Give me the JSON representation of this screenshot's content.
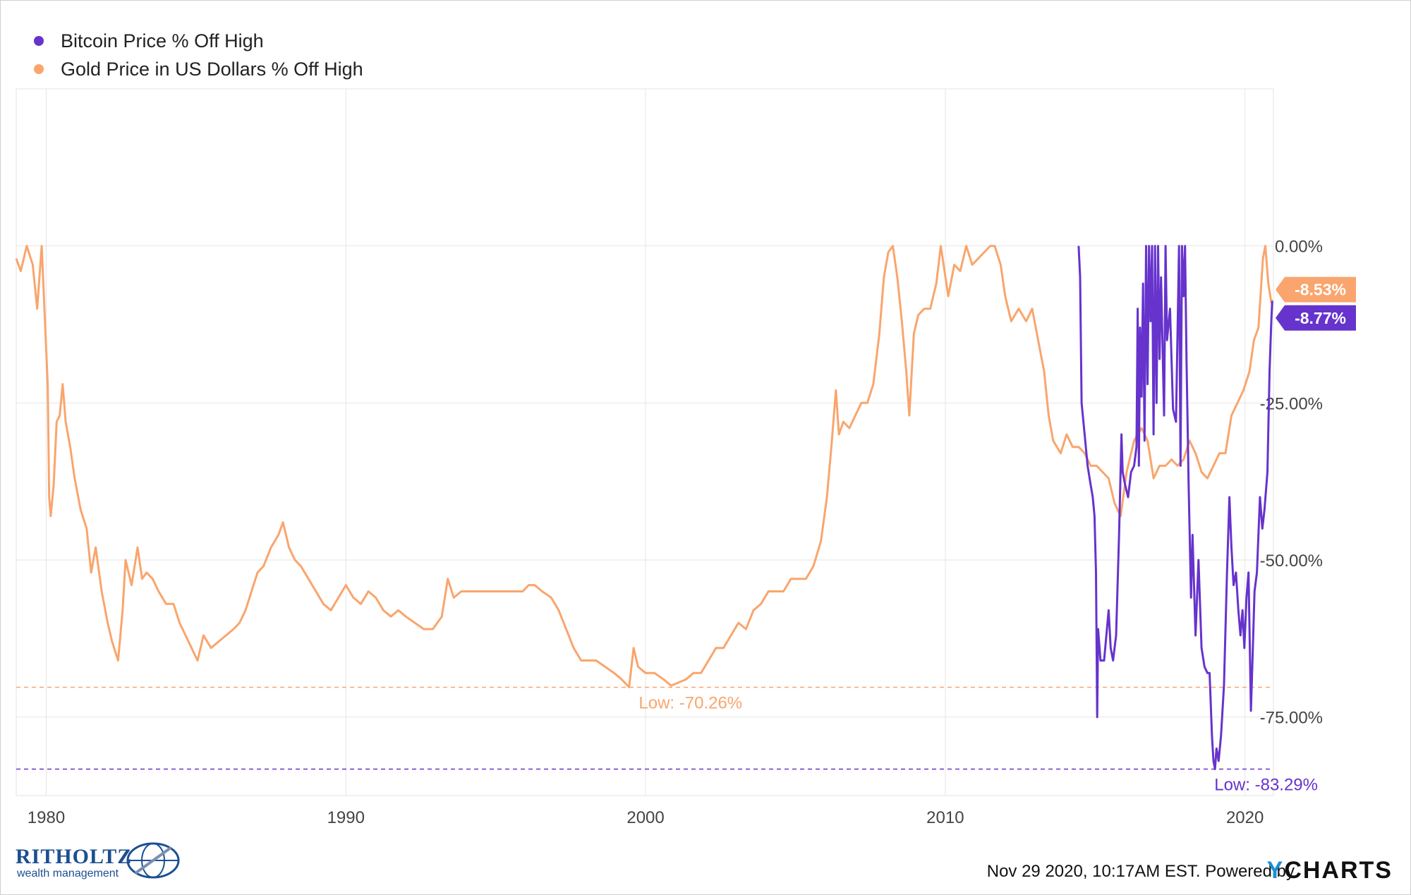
{
  "chart_data": {
    "type": "line",
    "title": "",
    "xlabel": "",
    "ylabel": "",
    "x_ticks": [
      "1980",
      "1990",
      "2000",
      "2010",
      "2020"
    ],
    "y_ticks": [
      "0.00%",
      "-25.00%",
      "-50.00%",
      "-75.00%"
    ],
    "xlim": [
      1979.0,
      2020.95
    ],
    "ylim": [
      -87.5,
      25
    ],
    "grid": true,
    "legend_position": "top-left",
    "series": [
      {
        "name": "Bitcoin Price % Off High",
        "color": "#6633cc",
        "last_value_label": "-8.77%",
        "low_label": "Low: -83.29%",
        "low_value": -83.29,
        "points": [
          [
            2014.45,
            0
          ],
          [
            2014.5,
            -5
          ],
          [
            2014.55,
            -25
          ],
          [
            2014.65,
            -30
          ],
          [
            2014.75,
            -35
          ],
          [
            2014.85,
            -38
          ],
          [
            2014.92,
            -40
          ],
          [
            2014.98,
            -43
          ],
          [
            2015.03,
            -52
          ],
          [
            2015.07,
            -75
          ],
          [
            2015.1,
            -61
          ],
          [
            2015.18,
            -66
          ],
          [
            2015.3,
            -66
          ],
          [
            2015.45,
            -58
          ],
          [
            2015.52,
            -64
          ],
          [
            2015.6,
            -66
          ],
          [
            2015.7,
            -62
          ],
          [
            2015.8,
            -46
          ],
          [
            2015.88,
            -30
          ],
          [
            2015.92,
            -36
          ],
          [
            2016.0,
            -38
          ],
          [
            2016.1,
            -40
          ],
          [
            2016.2,
            -36
          ],
          [
            2016.3,
            -35
          ],
          [
            2016.38,
            -32
          ],
          [
            2016.42,
            -10
          ],
          [
            2016.46,
            -35
          ],
          [
            2016.5,
            -13
          ],
          [
            2016.55,
            -24
          ],
          [
            2016.6,
            -6
          ],
          [
            2016.65,
            -31
          ],
          [
            2016.7,
            0
          ],
          [
            2016.75,
            -22
          ],
          [
            2016.8,
            0
          ],
          [
            2016.85,
            -12
          ],
          [
            2016.9,
            0
          ],
          [
            2016.95,
            -30
          ],
          [
            2017.0,
            0
          ],
          [
            2017.05,
            -25
          ],
          [
            2017.1,
            0
          ],
          [
            2017.15,
            -18
          ],
          [
            2017.2,
            -5
          ],
          [
            2017.3,
            -27
          ],
          [
            2017.35,
            0
          ],
          [
            2017.4,
            -15
          ],
          [
            2017.5,
            -10
          ],
          [
            2017.6,
            -26
          ],
          [
            2017.7,
            -28
          ],
          [
            2017.8,
            0
          ],
          [
            2017.85,
            -35
          ],
          [
            2017.9,
            0
          ],
          [
            2017.95,
            -8
          ],
          [
            2018.0,
            0
          ],
          [
            2018.05,
            -18
          ],
          [
            2018.12,
            -38
          ],
          [
            2018.2,
            -56
          ],
          [
            2018.25,
            -46
          ],
          [
            2018.35,
            -62
          ],
          [
            2018.45,
            -50
          ],
          [
            2018.55,
            -64
          ],
          [
            2018.65,
            -67
          ],
          [
            2018.75,
            -68
          ],
          [
            2018.82,
            -68
          ],
          [
            2018.9,
            -78
          ],
          [
            2018.95,
            -82
          ],
          [
            2019.0,
            -83.29
          ],
          [
            2019.05,
            -80
          ],
          [
            2019.12,
            -82
          ],
          [
            2019.2,
            -78
          ],
          [
            2019.3,
            -70
          ],
          [
            2019.4,
            -52
          ],
          [
            2019.48,
            -40
          ],
          [
            2019.55,
            -48
          ],
          [
            2019.62,
            -54
          ],
          [
            2019.7,
            -52
          ],
          [
            2019.78,
            -58
          ],
          [
            2019.85,
            -62
          ],
          [
            2019.92,
            -58
          ],
          [
            2019.98,
            -64
          ],
          [
            2020.05,
            -56
          ],
          [
            2020.12,
            -52
          ],
          [
            2020.2,
            -74
          ],
          [
            2020.25,
            -66
          ],
          [
            2020.32,
            -55
          ],
          [
            2020.4,
            -52
          ],
          [
            2020.5,
            -40
          ],
          [
            2020.58,
            -45
          ],
          [
            2020.65,
            -42
          ],
          [
            2020.75,
            -36
          ],
          [
            2020.82,
            -20
          ],
          [
            2020.88,
            -12
          ],
          [
            2020.91,
            -8.77
          ]
        ]
      },
      {
        "name": "Gold Price in US Dollars % Off High",
        "color": "#f9a56d",
        "last_value_label": "-8.53%",
        "low_label": "Low: -70.26%",
        "low_value": -70.26,
        "points": [
          [
            1979.0,
            -2
          ],
          [
            1979.15,
            -4
          ],
          [
            1979.35,
            0
          ],
          [
            1979.55,
            -3
          ],
          [
            1979.7,
            -10
          ],
          [
            1979.85,
            0
          ],
          [
            1980.05,
            -22
          ],
          [
            1980.1,
            -40
          ],
          [
            1980.15,
            -43
          ],
          [
            1980.25,
            -38
          ],
          [
            1980.35,
            -28
          ],
          [
            1980.45,
            -27
          ],
          [
            1980.55,
            -22
          ],
          [
            1980.65,
            -28
          ],
          [
            1980.8,
            -32
          ],
          [
            1980.95,
            -37
          ],
          [
            1981.15,
            -42
          ],
          [
            1981.35,
            -45
          ],
          [
            1981.5,
            -52
          ],
          [
            1981.65,
            -48
          ],
          [
            1981.85,
            -55
          ],
          [
            1982.05,
            -60
          ],
          [
            1982.2,
            -63
          ],
          [
            1982.4,
            -66
          ],
          [
            1982.55,
            -58
          ],
          [
            1982.65,
            -50
          ],
          [
            1982.85,
            -54
          ],
          [
            1983.05,
            -48
          ],
          [
            1983.2,
            -53
          ],
          [
            1983.35,
            -52
          ],
          [
            1983.55,
            -53
          ],
          [
            1983.75,
            -55
          ],
          [
            1984.0,
            -57
          ],
          [
            1984.25,
            -57
          ],
          [
            1984.45,
            -60
          ],
          [
            1984.65,
            -62
          ],
          [
            1984.85,
            -64
          ],
          [
            1985.05,
            -66
          ],
          [
            1985.25,
            -62
          ],
          [
            1985.5,
            -64
          ],
          [
            1985.75,
            -63
          ],
          [
            1986.0,
            -62
          ],
          [
            1986.25,
            -61
          ],
          [
            1986.45,
            -60
          ],
          [
            1986.65,
            -58
          ],
          [
            1986.85,
            -55
          ],
          [
            1987.05,
            -52
          ],
          [
            1987.25,
            -51
          ],
          [
            1987.5,
            -48
          ],
          [
            1987.75,
            -46
          ],
          [
            1987.9,
            -44
          ],
          [
            1988.1,
            -48
          ],
          [
            1988.3,
            -50
          ],
          [
            1988.5,
            -51
          ],
          [
            1988.75,
            -53
          ],
          [
            1989.0,
            -55
          ],
          [
            1989.25,
            -57
          ],
          [
            1989.5,
            -58
          ],
          [
            1989.75,
            -56
          ],
          [
            1990.0,
            -54
          ],
          [
            1990.25,
            -56
          ],
          [
            1990.5,
            -57
          ],
          [
            1990.75,
            -55
          ],
          [
            1991.0,
            -56
          ],
          [
            1991.25,
            -58
          ],
          [
            1991.5,
            -59
          ],
          [
            1991.75,
            -58
          ],
          [
            1992.0,
            -59
          ],
          [
            1992.3,
            -60
          ],
          [
            1992.6,
            -61
          ],
          [
            1992.9,
            -61
          ],
          [
            1993.2,
            -59
          ],
          [
            1993.4,
            -53
          ],
          [
            1993.6,
            -56
          ],
          [
            1993.85,
            -55
          ],
          [
            1994.1,
            -55
          ],
          [
            1994.4,
            -55
          ],
          [
            1994.7,
            -55
          ],
          [
            1995.0,
            -55
          ],
          [
            1995.3,
            -55
          ],
          [
            1995.6,
            -55
          ],
          [
            1995.9,
            -55
          ],
          [
            1996.1,
            -54
          ],
          [
            1996.3,
            -54
          ],
          [
            1996.55,
            -55
          ],
          [
            1996.85,
            -56
          ],
          [
            1997.1,
            -58
          ],
          [
            1997.35,
            -61
          ],
          [
            1997.6,
            -64
          ],
          [
            1997.85,
            -66
          ],
          [
            1998.1,
            -66
          ],
          [
            1998.35,
            -66
          ],
          [
            1998.65,
            -67
          ],
          [
            1998.95,
            -68
          ],
          [
            1999.2,
            -69
          ],
          [
            1999.45,
            -70.26
          ],
          [
            1999.6,
            -64
          ],
          [
            1999.75,
            -67
          ],
          [
            2000.0,
            -68
          ],
          [
            2000.3,
            -68
          ],
          [
            2000.6,
            -69
          ],
          [
            2000.85,
            -70
          ],
          [
            2001.1,
            -69.5
          ],
          [
            2001.35,
            -69
          ],
          [
            2001.6,
            -68
          ],
          [
            2001.85,
            -68
          ],
          [
            2002.1,
            -66
          ],
          [
            2002.35,
            -64
          ],
          [
            2002.6,
            -64
          ],
          [
            2002.85,
            -62
          ],
          [
            2003.1,
            -60
          ],
          [
            2003.35,
            -61
          ],
          [
            2003.6,
            -58
          ],
          [
            2003.85,
            -57
          ],
          [
            2004.1,
            -55
          ],
          [
            2004.35,
            -55
          ],
          [
            2004.6,
            -55
          ],
          [
            2004.85,
            -53
          ],
          [
            2005.1,
            -53
          ],
          [
            2005.35,
            -53
          ],
          [
            2005.6,
            -51
          ],
          [
            2005.85,
            -47
          ],
          [
            2006.05,
            -40
          ],
          [
            2006.2,
            -32
          ],
          [
            2006.35,
            -23
          ],
          [
            2006.45,
            -30
          ],
          [
            2006.6,
            -28
          ],
          [
            2006.8,
            -29
          ],
          [
            2007.0,
            -27
          ],
          [
            2007.2,
            -25
          ],
          [
            2007.4,
            -25
          ],
          [
            2007.6,
            -22
          ],
          [
            2007.8,
            -14
          ],
          [
            2007.95,
            -5
          ],
          [
            2008.1,
            -1
          ],
          [
            2008.25,
            0
          ],
          [
            2008.4,
            -5
          ],
          [
            2008.55,
            -12
          ],
          [
            2008.7,
            -20
          ],
          [
            2008.8,
            -27
          ],
          [
            2008.95,
            -14
          ],
          [
            2009.1,
            -11
          ],
          [
            2009.3,
            -10
          ],
          [
            2009.5,
            -10
          ],
          [
            2009.7,
            -6
          ],
          [
            2009.85,
            0
          ],
          [
            2010.1,
            -8
          ],
          [
            2010.3,
            -3
          ],
          [
            2010.5,
            -4
          ],
          [
            2010.7,
            0
          ],
          [
            2010.9,
            -3
          ],
          [
            2011.1,
            -2
          ],
          [
            2011.3,
            -1
          ],
          [
            2011.5,
            0
          ],
          [
            2011.65,
            0
          ],
          [
            2011.85,
            -3
          ],
          [
            2012.0,
            -8
          ],
          [
            2012.2,
            -12
          ],
          [
            2012.45,
            -10
          ],
          [
            2012.7,
            -12
          ],
          [
            2012.9,
            -10
          ],
          [
            2013.1,
            -15
          ],
          [
            2013.3,
            -20
          ],
          [
            2013.45,
            -27
          ],
          [
            2013.6,
            -31
          ],
          [
            2013.85,
            -33
          ],
          [
            2014.05,
            -30
          ],
          [
            2014.25,
            -32
          ],
          [
            2014.45,
            -32
          ],
          [
            2014.65,
            -33
          ],
          [
            2014.85,
            -35
          ],
          [
            2015.05,
            -35
          ],
          [
            2015.25,
            -36
          ],
          [
            2015.45,
            -37
          ],
          [
            2015.65,
            -41
          ],
          [
            2015.85,
            -43
          ],
          [
            2016.05,
            -36
          ],
          [
            2016.3,
            -31
          ],
          [
            2016.55,
            -29
          ],
          [
            2016.75,
            -31
          ],
          [
            2016.95,
            -37
          ],
          [
            2017.15,
            -35
          ],
          [
            2017.35,
            -35
          ],
          [
            2017.55,
            -34
          ],
          [
            2017.75,
            -35
          ],
          [
            2017.95,
            -34
          ],
          [
            2018.15,
            -31
          ],
          [
            2018.35,
            -33
          ],
          [
            2018.55,
            -36
          ],
          [
            2018.75,
            -37
          ],
          [
            2018.95,
            -35
          ],
          [
            2019.15,
            -33
          ],
          [
            2019.35,
            -33
          ],
          [
            2019.55,
            -27
          ],
          [
            2019.75,
            -25
          ],
          [
            2019.95,
            -23
          ],
          [
            2020.15,
            -20
          ],
          [
            2020.3,
            -15
          ],
          [
            2020.45,
            -13
          ],
          [
            2020.6,
            -2
          ],
          [
            2020.68,
            0
          ],
          [
            2020.78,
            -6
          ],
          [
            2020.88,
            -9
          ],
          [
            2020.91,
            -8.53
          ]
        ]
      }
    ]
  },
  "footer": {
    "timestamp": "Nov 29 2020, 10:17AM EST. Powered by",
    "brand_y": "Y",
    "brand_rest": "CHARTS"
  },
  "logo": {
    "name": "RITHOLTZ",
    "tagline": "wealth management"
  }
}
